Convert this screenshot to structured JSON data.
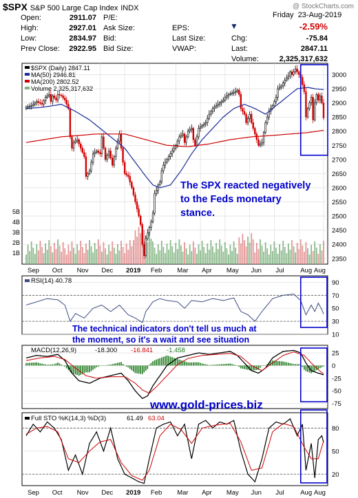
{
  "header": {
    "symbol": "$SPX",
    "name": "S&P 500 Large Cap Index",
    "exchange": "INDX",
    "watermark": "@ StockCharts.com",
    "day": "Friday",
    "date": "23-Aug-2019"
  },
  "quote": {
    "open_label": "Open:",
    "open": "2911.07",
    "high_label": "High:",
    "high": "2927.01",
    "low_label": "Low:",
    "low": "2834.97",
    "prev_label": "Prev Close:",
    "prev": "2922.95",
    "pe_label": "P/E:",
    "pe": "",
    "asksize_label": "Ask Size:",
    "asksize": "",
    "bid_label": "Bid:",
    "bid": "",
    "bidsize_label": "Bid Size:",
    "bidsize": "",
    "eps_label": "EPS:",
    "eps": "",
    "lastsize_label": "Last Size:",
    "lastsize": "",
    "vwap_label": "VWAP:",
    "vwap": "",
    "pct": "-2.59%",
    "chg_label": "Chg:",
    "chg": "-75.84",
    "last_label": "Last:",
    "last": "2847.11",
    "volume_label": "Volume:",
    "volume": "2,325,317,632"
  },
  "colors": {
    "price_up": "#000000",
    "price_down": "#d00000",
    "ma50": "#1a2a99",
    "ma200": "#cc0000",
    "volume_up": "#7fb27f",
    "volume_down": "#e08c8c",
    "annotation": "#0000cc",
    "box": "#0000cc",
    "macd_hist": "#1e7a1e",
    "grid": "#d8d8d8"
  },
  "annotations": {
    "price_note": [
      "The SPX reacted negatively",
      "to the Feds monetary",
      "stance."
    ],
    "indicator_note": [
      "The technical indicators don't tell us much at",
      "the moment, so it's a wait and see situation"
    ],
    "website": "www.gold-prices.biz"
  },
  "chart_data": [
    {
      "type": "candlestick",
      "panel": "price",
      "legend": [
        "$SPX (Daily) 2847.11",
        "MA(50) 2946.81",
        "MA(200) 2802.52",
        "Volume 2,325,317,632"
      ],
      "x_months": [
        "Sep",
        "Oct",
        "Nov",
        "Dec",
        "2019",
        "Feb",
        "Mar",
        "Apr",
        "May",
        "Jun",
        "Jul",
        "Aug",
        "Aug"
      ],
      "ylim": [
        2330,
        3040
      ],
      "y_ticks": [
        2350,
        2400,
        2450,
        2500,
        2550,
        2600,
        2650,
        2700,
        2750,
        2800,
        2850,
        2900,
        2950,
        3000
      ],
      "volume_ticks": [
        "1B",
        "2B",
        "3B",
        "4B",
        "5B"
      ],
      "close_path": [
        [
          0,
          2885
        ],
        [
          3,
          2890
        ],
        [
          6,
          2905
        ],
        [
          9,
          2895
        ],
        [
          11,
          2920
        ],
        [
          13,
          2930
        ],
        [
          14,
          2905
        ],
        [
          15,
          2925
        ],
        [
          17,
          2910
        ],
        [
          18,
          2930
        ],
        [
          20,
          2925
        ],
        [
          22,
          2910
        ],
        [
          24,
          2880
        ],
        [
          25,
          2780
        ],
        [
          26,
          2740
        ],
        [
          27,
          2760
        ],
        [
          29,
          2770
        ],
        [
          31,
          2740
        ],
        [
          33,
          2710
        ],
        [
          34,
          2640
        ],
        [
          36,
          2660
        ],
        [
          38,
          2720
        ],
        [
          40,
          2730
        ],
        [
          42,
          2720
        ],
        [
          43,
          2780
        ],
        [
          45,
          2700
        ],
        [
          47,
          2730
        ],
        [
          49,
          2680
        ],
        [
          51,
          2740
        ],
        [
          53,
          2790
        ],
        [
          55,
          2690
        ],
        [
          56,
          2650
        ],
        [
          58,
          2640
        ],
        [
          60,
          2600
        ],
        [
          62,
          2550
        ],
        [
          64,
          2500
        ],
        [
          65,
          2470
        ],
        [
          66,
          2400
        ],
        [
          67,
          2360
        ],
        [
          68,
          2420
        ],
        [
          69,
          2440
        ],
        [
          70,
          2460
        ],
        [
          71,
          2480
        ],
        [
          72,
          2510
        ],
        [
          73,
          2580
        ],
        [
          74,
          2590
        ],
        [
          75,
          2610
        ],
        [
          76,
          2620
        ],
        [
          77,
          2660
        ],
        [
          78,
          2680
        ],
        [
          79,
          2690
        ],
        [
          80,
          2700
        ],
        [
          82,
          2720
        ],
        [
          84,
          2740
        ],
        [
          85,
          2750
        ],
        [
          87,
          2780
        ],
        [
          89,
          2790
        ],
        [
          90,
          2760
        ],
        [
          92,
          2800
        ],
        [
          94,
          2810
        ],
        [
          95,
          2770
        ],
        [
          96,
          2750
        ],
        [
          98,
          2810
        ],
        [
          100,
          2820
        ],
        [
          102,
          2830
        ],
        [
          104,
          2860
        ],
        [
          106,
          2880
        ],
        [
          108,
          2890
        ],
        [
          110,
          2900
        ],
        [
          112,
          2910
        ],
        [
          113,
          2920
        ],
        [
          115,
          2930
        ],
        [
          117,
          2935
        ],
        [
          119,
          2940
        ],
        [
          120,
          2945
        ],
        [
          121,
          2930
        ],
        [
          122,
          2880
        ],
        [
          124,
          2860
        ],
        [
          125,
          2830
        ],
        [
          127,
          2860
        ],
        [
          128,
          2830
        ],
        [
          130,
          2790
        ],
        [
          132,
          2750
        ],
        [
          134,
          2760
        ],
        [
          136,
          2830
        ],
        [
          138,
          2870
        ],
        [
          140,
          2890
        ],
        [
          142,
          2920
        ],
        [
          143,
          2950
        ],
        [
          145,
          2960
        ],
        [
          147,
          2980
        ],
        [
          149,
          2995
        ],
        [
          150,
          3010
        ],
        [
          151,
          3000
        ],
        [
          153,
          3020
        ],
        [
          154,
          3010
        ],
        [
          156,
          2990
        ],
        [
          158,
          2940
        ],
        [
          159,
          2850
        ],
        [
          160,
          2880
        ],
        [
          162,
          2920
        ],
        [
          163,
          2840
        ],
        [
          164,
          2900
        ],
        [
          165,
          2930
        ],
        [
          166,
          2910
        ],
        [
          167,
          2925
        ],
        [
          168,
          2900
        ],
        [
          169,
          2847
        ]
      ],
      "ma50_path": [
        [
          0,
          2880
        ],
        [
          10,
          2885
        ],
        [
          20,
          2895
        ],
        [
          28,
          2870
        ],
        [
          36,
          2840
        ],
        [
          46,
          2790
        ],
        [
          56,
          2740
        ],
        [
          62,
          2690
        ],
        [
          68,
          2640
        ],
        [
          72,
          2610
        ],
        [
          76,
          2600
        ],
        [
          82,
          2610
        ],
        [
          88,
          2660
        ],
        [
          94,
          2720
        ],
        [
          100,
          2770
        ],
        [
          106,
          2810
        ],
        [
          112,
          2850
        ],
        [
          118,
          2880
        ],
        [
          124,
          2895
        ],
        [
          130,
          2880
        ],
        [
          136,
          2860
        ],
        [
          142,
          2890
        ],
        [
          148,
          2920
        ],
        [
          154,
          2950
        ],
        [
          160,
          2955
        ],
        [
          164,
          2950
        ],
        [
          169,
          2947
        ]
      ],
      "ma200_path": [
        [
          0,
          2760
        ],
        [
          20,
          2780
        ],
        [
          40,
          2790
        ],
        [
          56,
          2790
        ],
        [
          68,
          2770
        ],
        [
          80,
          2750
        ],
        [
          92,
          2745
        ],
        [
          104,
          2755
        ],
        [
          116,
          2770
        ],
        [
          128,
          2780
        ],
        [
          140,
          2785
        ],
        [
          150,
          2790
        ],
        [
          160,
          2795
        ],
        [
          169,
          2803
        ]
      ]
    },
    {
      "type": "line",
      "panel": "rsi",
      "legend": "RSI(14) 40.78",
      "ylim": [
        10,
        100
      ],
      "y_ticks": [
        10,
        30,
        50,
        70,
        90
      ],
      "points": [
        [
          0,
          55
        ],
        [
          6,
          60
        ],
        [
          12,
          65
        ],
        [
          18,
          63
        ],
        [
          22,
          55
        ],
        [
          25,
          30
        ],
        [
          28,
          42
        ],
        [
          33,
          35
        ],
        [
          38,
          50
        ],
        [
          43,
          55
        ],
        [
          48,
          45
        ],
        [
          53,
          55
        ],
        [
          58,
          40
        ],
        [
          62,
          35
        ],
        [
          66,
          28
        ],
        [
          68,
          45
        ],
        [
          72,
          60
        ],
        [
          76,
          65
        ],
        [
          80,
          62
        ],
        [
          86,
          60
        ],
        [
          90,
          50
        ],
        [
          94,
          62
        ],
        [
          100,
          60
        ],
        [
          106,
          65
        ],
        [
          112,
          62
        ],
        [
          118,
          66
        ],
        [
          122,
          45
        ],
        [
          126,
          40
        ],
        [
          130,
          30
        ],
        [
          134,
          45
        ],
        [
          140,
          65
        ],
        [
          146,
          70
        ],
        [
          152,
          72
        ],
        [
          156,
          62
        ],
        [
          159,
          40
        ],
        [
          162,
          55
        ],
        [
          164,
          45
        ],
        [
          166,
          58
        ],
        [
          168,
          48
        ],
        [
          169,
          41
        ]
      ]
    },
    {
      "type": "line",
      "panel": "macd",
      "legend_name": "MACD(12,26,9)",
      "legend_vals": [
        "-18.300",
        "-16.841",
        "-1.458"
      ],
      "ylim": [
        -85,
        40
      ],
      "y_ticks": [
        -75,
        -50,
        -25,
        0,
        25
      ],
      "macd_points": [
        [
          0,
          15
        ],
        [
          6,
          20
        ],
        [
          12,
          18
        ],
        [
          18,
          22
        ],
        [
          22,
          10
        ],
        [
          26,
          -15
        ],
        [
          30,
          -30
        ],
        [
          36,
          -35
        ],
        [
          42,
          -25
        ],
        [
          48,
          -20
        ],
        [
          54,
          -15
        ],
        [
          58,
          -30
        ],
        [
          62,
          -50
        ],
        [
          66,
          -65
        ],
        [
          69,
          -60
        ],
        [
          72,
          -40
        ],
        [
          76,
          -20
        ],
        [
          80,
          0
        ],
        [
          86,
          15
        ],
        [
          92,
          20
        ],
        [
          98,
          25
        ],
        [
          104,
          22
        ],
        [
          110,
          25
        ],
        [
          116,
          28
        ],
        [
          120,
          20
        ],
        [
          124,
          5
        ],
        [
          128,
          -10
        ],
        [
          132,
          -15
        ],
        [
          136,
          -5
        ],
        [
          140,
          15
        ],
        [
          146,
          28
        ],
        [
          152,
          30
        ],
        [
          156,
          25
        ],
        [
          159,
          5
        ],
        [
          162,
          -10
        ],
        [
          166,
          -15
        ],
        [
          169,
          -18.3
        ]
      ],
      "signal_points": [
        [
          0,
          10
        ],
        [
          8,
          15
        ],
        [
          16,
          18
        ],
        [
          22,
          12
        ],
        [
          28,
          -5
        ],
        [
          34,
          -20
        ],
        [
          40,
          -25
        ],
        [
          48,
          -22
        ],
        [
          56,
          -22
        ],
        [
          62,
          -35
        ],
        [
          66,
          -48
        ],
        [
          70,
          -55
        ],
        [
          74,
          -42
        ],
        [
          80,
          -20
        ],
        [
          86,
          2
        ],
        [
          92,
          14
        ],
        [
          100,
          20
        ],
        [
          108,
          22
        ],
        [
          116,
          24
        ],
        [
          122,
          18
        ],
        [
          128,
          0
        ],
        [
          134,
          -10
        ],
        [
          140,
          5
        ],
        [
          146,
          20
        ],
        [
          152,
          27
        ],
        [
          158,
          20
        ],
        [
          162,
          5
        ],
        [
          166,
          -8
        ],
        [
          169,
          -16.8
        ]
      ],
      "histogram": "-1.458"
    },
    {
      "type": "line",
      "panel": "stochastic",
      "legend": [
        "Full STO %K(14,3) %D(3)",
        "61.49",
        "63.04"
      ],
      "ylim": [
        5,
        100
      ],
      "y_ticks": [
        20,
        50,
        80
      ],
      "k_points": [
        [
          0,
          70
        ],
        [
          4,
          85
        ],
        [
          8,
          75
        ],
        [
          12,
          88
        ],
        [
          16,
          80
        ],
        [
          20,
          65
        ],
        [
          24,
          25
        ],
        [
          28,
          45
        ],
        [
          32,
          20
        ],
        [
          36,
          60
        ],
        [
          40,
          75
        ],
        [
          44,
          50
        ],
        [
          48,
          80
        ],
        [
          52,
          40
        ],
        [
          56,
          20
        ],
        [
          60,
          15
        ],
        [
          64,
          10
        ],
        [
          67,
          8
        ],
        [
          70,
          40
        ],
        [
          74,
          80
        ],
        [
          78,
          85
        ],
        [
          82,
          88
        ],
        [
          86,
          70
        ],
        [
          90,
          85
        ],
        [
          94,
          40
        ],
        [
          98,
          85
        ],
        [
          102,
          90
        ],
        [
          106,
          80
        ],
        [
          110,
          88
        ],
        [
          114,
          85
        ],
        [
          118,
          90
        ],
        [
          122,
          50
        ],
        [
          126,
          20
        ],
        [
          130,
          10
        ],
        [
          134,
          40
        ],
        [
          138,
          80
        ],
        [
          142,
          88
        ],
        [
          146,
          85
        ],
        [
          150,
          92
        ],
        [
          154,
          70
        ],
        [
          157,
          85
        ],
        [
          159,
          25
        ],
        [
          162,
          60
        ],
        [
          164,
          15
        ],
        [
          166,
          65
        ],
        [
          168,
          70
        ],
        [
          169,
          61.49
        ]
      ],
      "d_points": [
        [
          0,
          72
        ],
        [
          6,
          80
        ],
        [
          12,
          82
        ],
        [
          18,
          75
        ],
        [
          24,
          40
        ],
        [
          30,
          35
        ],
        [
          36,
          50
        ],
        [
          42,
          62
        ],
        [
          48,
          65
        ],
        [
          54,
          35
        ],
        [
          60,
          18
        ],
        [
          66,
          12
        ],
        [
          70,
          25
        ],
        [
          76,
          70
        ],
        [
          82,
          85
        ],
        [
          88,
          78
        ],
        [
          94,
          60
        ],
        [
          100,
          80
        ],
        [
          108,
          84
        ],
        [
          116,
          86
        ],
        [
          122,
          62
        ],
        [
          128,
          25
        ],
        [
          134,
          28
        ],
        [
          140,
          75
        ],
        [
          146,
          86
        ],
        [
          152,
          82
        ],
        [
          158,
          55
        ],
        [
          162,
          40
        ],
        [
          166,
          40
        ],
        [
          169,
          63.04
        ]
      ]
    }
  ]
}
